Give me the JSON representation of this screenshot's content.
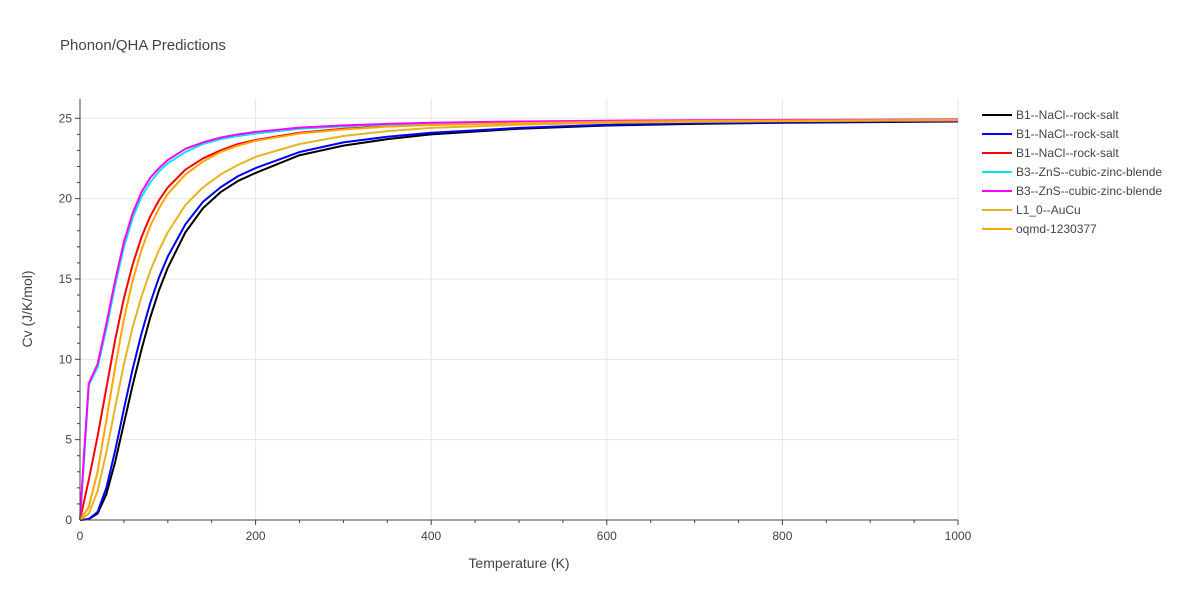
{
  "chart_data": {
    "type": "line",
    "title": "Phonon/QHA Predictions",
    "xlabel": "Temperature (K)",
    "ylabel": "Cv (J/K/mol)",
    "xlim": [
      0,
      1000
    ],
    "ylim": [
      0,
      26.2
    ],
    "xticks": [
      0,
      200,
      400,
      600,
      800,
      1000
    ],
    "yticks": [
      0,
      5,
      10,
      15,
      20,
      25
    ],
    "grid": true,
    "legend_position": "right",
    "series": [
      {
        "name": "B1--NaCl--rock-salt",
        "color": "#000000",
        "x": [
          0,
          10,
          20,
          30,
          40,
          50,
          60,
          70,
          80,
          90,
          100,
          120,
          140,
          160,
          180,
          200,
          250,
          300,
          350,
          400,
          500,
          600,
          700,
          800,
          900,
          1000
        ],
        "y": [
          0,
          0.05,
          0.4,
          1.6,
          3.6,
          6.0,
          8.4,
          10.6,
          12.6,
          14.3,
          15.7,
          17.9,
          19.4,
          20.4,
          21.1,
          21.6,
          22.7,
          23.3,
          23.7,
          24.0,
          24.35,
          24.55,
          24.65,
          24.72,
          24.76,
          24.8
        ]
      },
      {
        "name": "B1--NaCl--rock-salt",
        "color": "#0000ff",
        "x": [
          0,
          10,
          20,
          30,
          40,
          50,
          60,
          70,
          80,
          90,
          100,
          120,
          140,
          160,
          180,
          200,
          250,
          300,
          350,
          400,
          500,
          600,
          700,
          800,
          900,
          1000
        ],
        "y": [
          0,
          0.06,
          0.5,
          2.0,
          4.3,
          6.9,
          9.4,
          11.6,
          13.5,
          15.1,
          16.4,
          18.4,
          19.8,
          20.7,
          21.4,
          21.9,
          22.9,
          23.5,
          23.85,
          24.1,
          24.4,
          24.6,
          24.7,
          24.75,
          24.8,
          24.82
        ]
      },
      {
        "name": "B1--NaCl--rock-salt",
        "color": "#ff0000",
        "x": [
          0,
          10,
          20,
          30,
          40,
          50,
          60,
          70,
          80,
          90,
          100,
          120,
          140,
          160,
          180,
          200,
          250,
          300,
          350,
          400,
          500,
          600,
          700,
          800,
          900,
          1000
        ],
        "y": [
          0,
          2.5,
          5.2,
          8.2,
          11.2,
          13.8,
          15.9,
          17.6,
          18.9,
          19.9,
          20.7,
          21.8,
          22.5,
          23.0,
          23.4,
          23.65,
          24.1,
          24.35,
          24.5,
          24.6,
          24.72,
          24.8,
          24.84,
          24.86,
          24.88,
          24.9
        ]
      },
      {
        "name": "B3--ZnS--cubic-zinc-blende",
        "color": "#00e5ee",
        "x": [
          0,
          5,
          10,
          20,
          30,
          40,
          50,
          60,
          70,
          80,
          90,
          100,
          120,
          140,
          160,
          180,
          200,
          250,
          300,
          350,
          400,
          500,
          600,
          700,
          800,
          900,
          1000
        ],
        "y": [
          0,
          4.0,
          8.4,
          9.5,
          11.9,
          14.6,
          17.0,
          18.8,
          20.1,
          21.0,
          21.7,
          22.2,
          22.9,
          23.4,
          23.7,
          23.9,
          24.05,
          24.35,
          24.5,
          24.6,
          24.68,
          24.78,
          24.84,
          24.87,
          24.89,
          24.9,
          24.92
        ]
      },
      {
        "name": "B3--ZnS--cubic-zinc-blende",
        "color": "#ff00ff",
        "x": [
          0,
          5,
          10,
          20,
          30,
          40,
          50,
          60,
          70,
          80,
          90,
          100,
          120,
          140,
          160,
          180,
          200,
          250,
          300,
          350,
          400,
          500,
          600,
          700,
          800,
          900,
          1000
        ],
        "y": [
          0,
          4.5,
          8.5,
          9.7,
          12.2,
          14.9,
          17.3,
          19.1,
          20.4,
          21.3,
          21.9,
          22.4,
          23.1,
          23.5,
          23.8,
          24.0,
          24.15,
          24.42,
          24.56,
          24.65,
          24.72,
          24.8,
          24.85,
          24.88,
          24.9,
          24.91,
          24.93
        ]
      },
      {
        "name": "L1_0--AuCu",
        "color": "#e6b422",
        "x": [
          0,
          10,
          20,
          30,
          40,
          50,
          60,
          70,
          80,
          90,
          100,
          120,
          140,
          160,
          180,
          200,
          250,
          300,
          350,
          400,
          500,
          600,
          700,
          800,
          900,
          1000
        ],
        "y": [
          0,
          0.4,
          1.8,
          4.2,
          7.0,
          9.7,
          12.0,
          13.9,
          15.5,
          16.8,
          17.9,
          19.6,
          20.7,
          21.5,
          22.1,
          22.6,
          23.4,
          23.9,
          24.2,
          24.4,
          24.6,
          24.72,
          24.78,
          24.82,
          24.85,
          24.87
        ]
      },
      {
        "name": "oqmd-1230377",
        "color": "#ffa500",
        "x": [
          0,
          10,
          20,
          30,
          40,
          50,
          60,
          70,
          80,
          90,
          100,
          120,
          140,
          160,
          180,
          200,
          250,
          300,
          350,
          400,
          500,
          600,
          700,
          800,
          900,
          1000
        ],
        "y": [
          0,
          0.8,
          3.0,
          6.2,
          9.5,
          12.5,
          14.9,
          16.8,
          18.3,
          19.4,
          20.3,
          21.5,
          22.3,
          22.9,
          23.3,
          23.6,
          24.05,
          24.3,
          24.48,
          24.58,
          24.7,
          24.78,
          24.83,
          24.86,
          24.88,
          24.9
        ]
      }
    ]
  }
}
